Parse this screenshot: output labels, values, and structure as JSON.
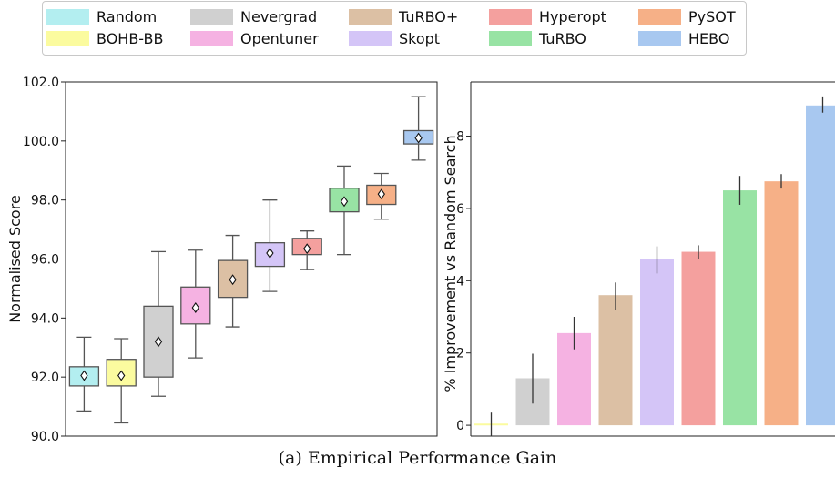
{
  "legend": {
    "entries": [
      {
        "name": "Random",
        "color": "#b3eef0"
      },
      {
        "name": "Nevergrad",
        "color": "#d0d0d0"
      },
      {
        "name": "TuRBO+",
        "color": "#dcc0a4"
      },
      {
        "name": "Hyperopt",
        "color": "#f4a09e"
      },
      {
        "name": "PySOT",
        "color": "#f6b087"
      },
      {
        "name": "BOHB-BB",
        "color": "#fbfb9f"
      },
      {
        "name": "Opentuner",
        "color": "#f5b2e2"
      },
      {
        "name": "Skopt",
        "color": "#d4c5f7"
      },
      {
        "name": "TuRBO",
        "color": "#98e3a4"
      },
      {
        "name": "HEBO",
        "color": "#a8c8f0"
      }
    ]
  },
  "caption": "(a) Empirical Performance Gain",
  "chart_data": [
    {
      "type": "box",
      "ylabel": "Normalised Score",
      "ylim": [
        90,
        102
      ],
      "yticks": [
        "90.0",
        "92.0",
        "94.0",
        "96.0",
        "98.0",
        "100.0",
        "102.0"
      ],
      "grid": false,
      "boxes": [
        {
          "name": "Random",
          "color": "#b3eef0",
          "whisker_low": 90.85,
          "q1": 91.7,
          "median": 92.05,
          "mean": 92.05,
          "q3": 92.35,
          "whisker_high": 93.35
        },
        {
          "name": "BOHB-BB",
          "color": "#fbfb9f",
          "whisker_low": 90.45,
          "q1": 91.7,
          "median": 92.05,
          "mean": 92.05,
          "q3": 92.6,
          "whisker_high": 93.3
        },
        {
          "name": "Nevergrad",
          "color": "#d0d0d0",
          "whisker_low": 91.35,
          "q1": 92.0,
          "median": 93.2,
          "mean": 93.2,
          "q3": 94.4,
          "whisker_high": 96.25
        },
        {
          "name": "Opentuner",
          "color": "#f5b2e2",
          "whisker_low": 92.65,
          "q1": 93.8,
          "median": 94.35,
          "mean": 94.35,
          "q3": 95.05,
          "whisker_high": 96.3
        },
        {
          "name": "TuRBO+",
          "color": "#dcc0a4",
          "whisker_low": 93.7,
          "q1": 94.7,
          "median": 95.3,
          "mean": 95.3,
          "q3": 95.95,
          "whisker_high": 96.8
        },
        {
          "name": "Skopt",
          "color": "#d4c5f7",
          "whisker_low": 94.9,
          "q1": 95.75,
          "median": 96.2,
          "mean": 96.2,
          "q3": 96.55,
          "whisker_high": 98.0
        },
        {
          "name": "Hyperopt",
          "color": "#f4a09e",
          "whisker_low": 95.65,
          "q1": 96.15,
          "median": 96.35,
          "mean": 96.35,
          "q3": 96.7,
          "whisker_high": 96.95
        },
        {
          "name": "TuRBO",
          "color": "#98e3a4",
          "whisker_low": 96.15,
          "q1": 97.6,
          "median": 97.95,
          "mean": 97.95,
          "q3": 98.4,
          "whisker_high": 99.15
        },
        {
          "name": "PySOT",
          "color": "#f6b087",
          "whisker_low": 97.35,
          "q1": 97.85,
          "median": 98.2,
          "mean": 98.2,
          "q3": 98.5,
          "whisker_high": 98.9
        },
        {
          "name": "HEBO",
          "color": "#a8c8f0",
          "whisker_low": 99.35,
          "q1": 99.9,
          "median": 100.1,
          "mean": 100.1,
          "q3": 100.35,
          "whisker_high": 101.5
        }
      ]
    },
    {
      "type": "bar",
      "ylabel": "% Improvement vs Random Search",
      "ylim": [
        -0.3,
        9.5
      ],
      "yticks": [
        "0",
        "2",
        "4",
        "6",
        "8"
      ],
      "grid": false,
      "categories": [
        "BOHB-BB",
        "Nevergrad",
        "Opentuner",
        "TuRBO+",
        "Skopt",
        "Hyperopt",
        "TuRBO",
        "PySOT",
        "HEBO"
      ],
      "colors": [
        "#fbfb9f",
        "#d0d0d0",
        "#f5b2e2",
        "#dcc0a4",
        "#d4c5f7",
        "#f4a09e",
        "#98e3a4",
        "#f6b087",
        "#a8c8f0"
      ],
      "values": [
        0.02,
        1.3,
        2.55,
        3.6,
        4.6,
        4.8,
        6.5,
        6.75,
        8.85
      ],
      "err_low": [
        -0.3,
        0.6,
        2.1,
        3.2,
        4.2,
        4.6,
        6.1,
        6.55,
        8.65
      ],
      "err_high": [
        0.35,
        1.98,
        3.0,
        3.95,
        4.95,
        4.98,
        6.9,
        6.95,
        9.1
      ]
    }
  ]
}
